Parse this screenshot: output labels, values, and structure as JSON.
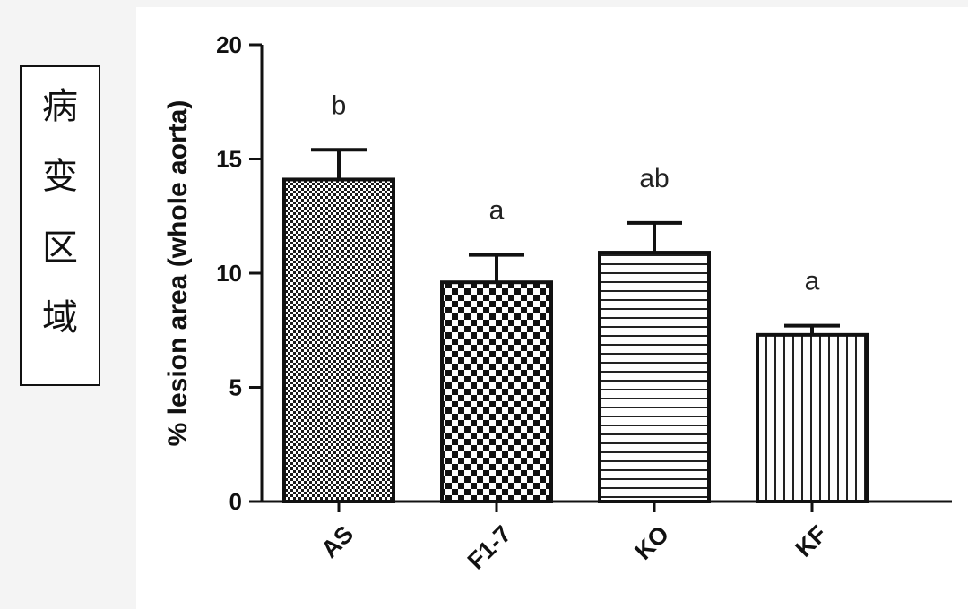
{
  "side_label": [
    "病",
    "变",
    "区",
    "域"
  ],
  "chart_data": {
    "type": "bar",
    "title": "",
    "xlabel": "",
    "ylabel": "% lesion area (whole aorta)",
    "ylim": [
      0,
      20
    ],
    "yticks": [
      0,
      5,
      10,
      15,
      20
    ],
    "categories": [
      "AS",
      "F1-7",
      "KO",
      "KF"
    ],
    "values": [
      14.1,
      9.6,
      10.9,
      7.3
    ],
    "errors": [
      1.3,
      1.2,
      1.3,
      0.4
    ],
    "significance": [
      "b",
      "a",
      "ab",
      "a"
    ],
    "patterns": [
      "fine-dots",
      "checker",
      "horizontal-lines",
      "vertical-lines"
    ],
    "grid": false,
    "colors": {
      "bar_edge": "#111111",
      "pattern": "#111111",
      "background": "#ffffff"
    }
  }
}
